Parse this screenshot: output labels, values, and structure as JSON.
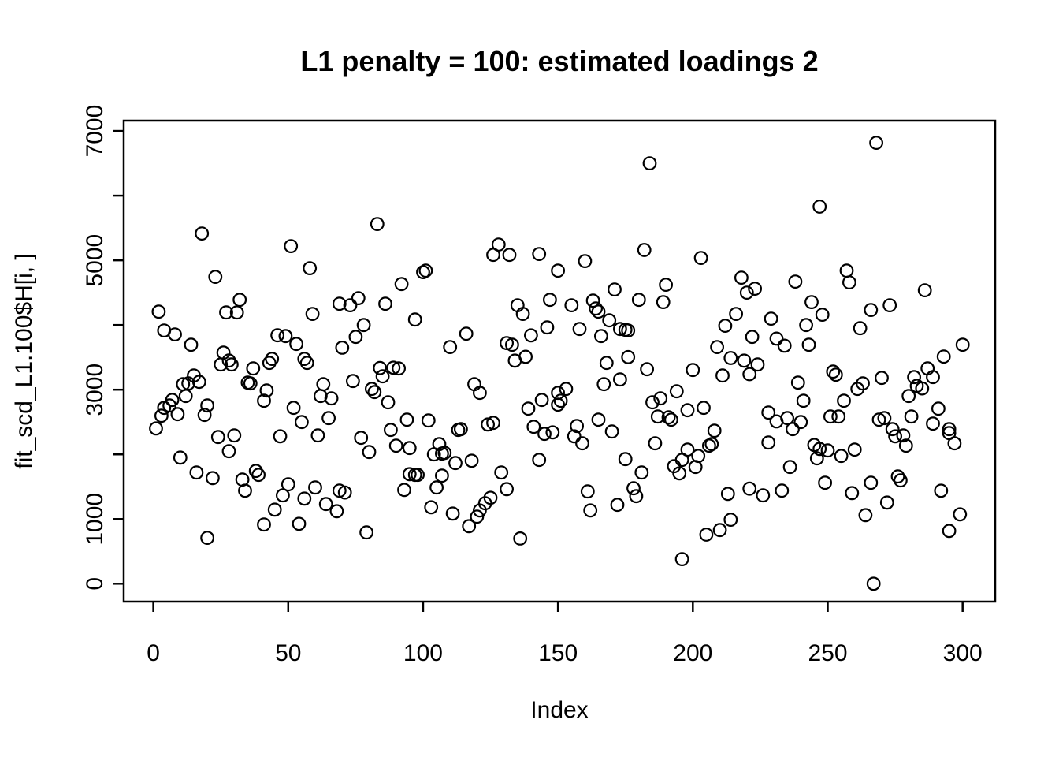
{
  "title": "L1 penalty = 100: estimated loadings 2",
  "chart_data": {
    "type": "scatter",
    "title": "L1 penalty = 100: estimated loadings 2",
    "xlabel": "Index",
    "ylabel": "fit_scd_L1.100$H[i, ]",
    "xlim": [
      0,
      300
    ],
    "ylim": [
      0,
      7000
    ],
    "x_ticks": [
      0,
      50,
      100,
      150,
      200,
      250,
      300
    ],
    "y_ticks": [
      0,
      1000,
      2000,
      3000,
      4000,
      5000,
      6000,
      7000
    ],
    "y_tick_labels": [
      "0",
      "1000",
      "",
      "3000",
      "",
      "5000",
      "",
      "7000"
    ],
    "grid": false,
    "legend": null,
    "marker": {
      "shape": "open-circle",
      "stroke_color": "#000000",
      "fill": "none"
    },
    "background_color": "#ffffff",
    "points": [
      [
        1,
        2402
      ],
      [
        2,
        4207
      ],
      [
        3,
        2598
      ],
      [
        4,
        3915
      ],
      [
        4,
        2720
      ],
      [
        6,
        2756
      ],
      [
        7,
        2841
      ],
      [
        8,
        3854
      ],
      [
        9,
        2622
      ],
      [
        10,
        1951
      ],
      [
        11,
        3085
      ],
      [
        12,
        2902
      ],
      [
        13,
        3098
      ],
      [
        14,
        3695
      ],
      [
        15,
        3220
      ],
      [
        16,
        1720
      ],
      [
        17,
        3122
      ],
      [
        18,
        5415
      ],
      [
        19,
        2610
      ],
      [
        20,
        2756
      ],
      [
        20,
        710
      ],
      [
        22,
        1634
      ],
      [
        23,
        4744
      ],
      [
        24,
        2268
      ],
      [
        25,
        3390
      ],
      [
        26,
        3573
      ],
      [
        27,
        4195
      ],
      [
        28,
        3451
      ],
      [
        28,
        2049
      ],
      [
        29,
        3390
      ],
      [
        30,
        2293
      ],
      [
        31,
        4195
      ],
      [
        32,
        4390
      ],
      [
        33,
        1610
      ],
      [
        34,
        1439
      ],
      [
        35,
        3110
      ],
      [
        36,
        3098
      ],
      [
        37,
        3329
      ],
      [
        38,
        1744
      ],
      [
        39,
        1683
      ],
      [
        41,
        2829
      ],
      [
        41,
        915
      ],
      [
        42,
        2988
      ],
      [
        43,
        3415
      ],
      [
        44,
        3476
      ],
      [
        45,
        1146
      ],
      [
        46,
        3841
      ],
      [
        47,
        2280
      ],
      [
        48,
        1366
      ],
      [
        49,
        3829
      ],
      [
        50,
        1537
      ],
      [
        51,
        5220
      ],
      [
        52,
        2720
      ],
      [
        53,
        3707
      ],
      [
        54,
        927
      ],
      [
        55,
        2500
      ],
      [
        56,
        3476
      ],
      [
        56,
        1317
      ],
      [
        57,
        3415
      ],
      [
        58,
        4878
      ],
      [
        59,
        4171
      ],
      [
        60,
        1488
      ],
      [
        61,
        2293
      ],
      [
        62,
        2902
      ],
      [
        63,
        3085
      ],
      [
        64,
        1232
      ],
      [
        65,
        2561
      ],
      [
        66,
        2866
      ],
      [
        68,
        1122
      ],
      [
        69,
        4329
      ],
      [
        69,
        1440
      ],
      [
        70,
        3650
      ],
      [
        71,
        1410
      ],
      [
        73,
        4305
      ],
      [
        74,
        3134
      ],
      [
        75,
        3817
      ],
      [
        76,
        4415
      ],
      [
        77,
        2256
      ],
      [
        78,
        4000
      ],
      [
        79,
        793
      ],
      [
        80,
        2037
      ],
      [
        81,
        3012
      ],
      [
        82,
        2963
      ],
      [
        83,
        5561
      ],
      [
        84,
        3335
      ],
      [
        85,
        3207
      ],
      [
        86,
        4329
      ],
      [
        87,
        2805
      ],
      [
        88,
        2378
      ],
      [
        89,
        3340
      ],
      [
        90,
        2134
      ],
      [
        91,
        3329
      ],
      [
        92,
        4634
      ],
      [
        93,
        1451
      ],
      [
        94,
        2537
      ],
      [
        95,
        2098
      ],
      [
        95,
        1695
      ],
      [
        97,
        4085
      ],
      [
        97,
        1683
      ],
      [
        98,
        1683
      ],
      [
        100,
        4817
      ],
      [
        101,
        4841
      ],
      [
        102,
        2524
      ],
      [
        103,
        1183
      ],
      [
        104,
        2000
      ],
      [
        105,
        1488
      ],
      [
        106,
        2159
      ],
      [
        107,
        2012
      ],
      [
        107,
        1671
      ],
      [
        108,
        2024
      ],
      [
        110,
        3659
      ],
      [
        111,
        1085
      ],
      [
        112,
        1866
      ],
      [
        113,
        2378
      ],
      [
        114,
        2390
      ],
      [
        116,
        3866
      ],
      [
        117,
        890
      ],
      [
        118,
        1902
      ],
      [
        119,
        3085
      ],
      [
        120,
        1037
      ],
      [
        121,
        2951
      ],
      [
        121,
        1134
      ],
      [
        123,
        1244
      ],
      [
        124,
        2463
      ],
      [
        125,
        1329
      ],
      [
        126,
        5085
      ],
      [
        126,
        2488
      ],
      [
        128,
        5244
      ],
      [
        129,
        1720
      ],
      [
        131,
        3720
      ],
      [
        131,
        1463
      ],
      [
        132,
        5085
      ],
      [
        133,
        3695
      ],
      [
        134,
        3450
      ],
      [
        135,
        4305
      ],
      [
        136,
        700
      ],
      [
        137,
        4171
      ],
      [
        138,
        3510
      ],
      [
        139,
        2707
      ],
      [
        140,
        3840
      ],
      [
        141,
        2427
      ],
      [
        143,
        5098
      ],
      [
        143,
        1915
      ],
      [
        144,
        2841
      ],
      [
        145,
        2317
      ],
      [
        146,
        3963
      ],
      [
        147,
        4390
      ],
      [
        148,
        2341
      ],
      [
        150,
        4841
      ],
      [
        150,
        2951
      ],
      [
        150,
        2768
      ],
      [
        151,
        2829
      ],
      [
        153,
        3012
      ],
      [
        155,
        4305
      ],
      [
        156,
        2280
      ],
      [
        157,
        2439
      ],
      [
        158,
        3939
      ],
      [
        159,
        2171
      ],
      [
        160,
        4988
      ],
      [
        161,
        1427
      ],
      [
        162,
        1134
      ],
      [
        163,
        4378
      ],
      [
        164,
        4256
      ],
      [
        165,
        4207
      ],
      [
        165,
        2537
      ],
      [
        166,
        3829
      ],
      [
        167,
        3085
      ],
      [
        168,
        3415
      ],
      [
        169,
        4073
      ],
      [
        170,
        2354
      ],
      [
        171,
        4549
      ],
      [
        172,
        1220
      ],
      [
        173,
        3939
      ],
      [
        173,
        3159
      ],
      [
        175,
        3927
      ],
      [
        175,
        1927
      ],
      [
        176,
        3915
      ],
      [
        176,
        3505
      ],
      [
        178,
        1476
      ],
      [
        179,
        1354
      ],
      [
        180,
        4390
      ],
      [
        181,
        1720
      ],
      [
        182,
        5160
      ],
      [
        183,
        3317
      ],
      [
        184,
        6500
      ],
      [
        185,
        2805
      ],
      [
        186,
        2171
      ],
      [
        187,
        2585
      ],
      [
        188,
        2866
      ],
      [
        189,
        4354
      ],
      [
        190,
        4622
      ],
      [
        191,
        2573
      ],
      [
        192,
        2537
      ],
      [
        193,
        1817
      ],
      [
        194,
        2976
      ],
      [
        195,
        1707
      ],
      [
        196,
        1915
      ],
      [
        196,
        380
      ],
      [
        198,
        2683
      ],
      [
        198,
        2073
      ],
      [
        200,
        3305
      ],
      [
        201,
        1805
      ],
      [
        202,
        1976
      ],
      [
        203,
        5037
      ],
      [
        204,
        2720
      ],
      [
        205,
        760
      ],
      [
        206,
        2134
      ],
      [
        207,
        2159
      ],
      [
        208,
        2366
      ],
      [
        209,
        3659
      ],
      [
        210,
        830
      ],
      [
        211,
        3220
      ],
      [
        212,
        3988
      ],
      [
        213,
        1390
      ],
      [
        214,
        3490
      ],
      [
        214,
        990
      ],
      [
        216,
        4171
      ],
      [
        218,
        4732
      ],
      [
        219,
        3450
      ],
      [
        220,
        4500
      ],
      [
        221,
        3240
      ],
      [
        221,
        1470
      ],
      [
        222,
        3817
      ],
      [
        223,
        4561
      ],
      [
        224,
        3390
      ],
      [
        226,
        1366
      ],
      [
        228,
        2646
      ],
      [
        228,
        2183
      ],
      [
        229,
        4098
      ],
      [
        231,
        3790
      ],
      [
        231,
        2510
      ],
      [
        233,
        1440
      ],
      [
        234,
        3680
      ],
      [
        235,
        2561
      ],
      [
        236,
        1805
      ],
      [
        237,
        2390
      ],
      [
        238,
        4671
      ],
      [
        239,
        3110
      ],
      [
        240,
        2500
      ],
      [
        241,
        2829
      ],
      [
        242,
        4000
      ],
      [
        243,
        3695
      ],
      [
        244,
        4354
      ],
      [
        245,
        2146
      ],
      [
        246,
        1939
      ],
      [
        247,
        5830
      ],
      [
        247,
        2085
      ],
      [
        248,
        4159
      ],
      [
        249,
        1561
      ],
      [
        250,
        2061
      ],
      [
        251,
        2585
      ],
      [
        252,
        3280
      ],
      [
        253,
        3232
      ],
      [
        254,
        2585
      ],
      [
        255,
        1976
      ],
      [
        256,
        2829
      ],
      [
        257,
        4841
      ],
      [
        258,
        4659
      ],
      [
        259,
        1402
      ],
      [
        260,
        2073
      ],
      [
        261,
        3012
      ],
      [
        262,
        3951
      ],
      [
        263,
        3098
      ],
      [
        264,
        1061
      ],
      [
        266,
        4232
      ],
      [
        266,
        1561
      ],
      [
        267,
        0
      ],
      [
        268,
        6817
      ],
      [
        269,
        2537
      ],
      [
        270,
        3183
      ],
      [
        271,
        2561
      ],
      [
        272,
        1256
      ],
      [
        273,
        4305
      ],
      [
        274,
        2390
      ],
      [
        275,
        2280
      ],
      [
        276,
        1659
      ],
      [
        277,
        1598
      ],
      [
        278,
        2293
      ],
      [
        279,
        2134
      ],
      [
        280,
        2902
      ],
      [
        281,
        2585
      ],
      [
        282,
        3195
      ],
      [
        283,
        3060
      ],
      [
        285,
        3020
      ],
      [
        286,
        4537
      ],
      [
        287,
        3329
      ],
      [
        289,
        3195
      ],
      [
        289,
        2476
      ],
      [
        291,
        2707
      ],
      [
        292,
        1439
      ],
      [
        293,
        3512
      ],
      [
        295,
        2390
      ],
      [
        295,
        2329
      ],
      [
        295,
        817
      ],
      [
        297,
        2171
      ],
      [
        299,
        1073
      ],
      [
        300,
        3695
      ]
    ]
  }
}
